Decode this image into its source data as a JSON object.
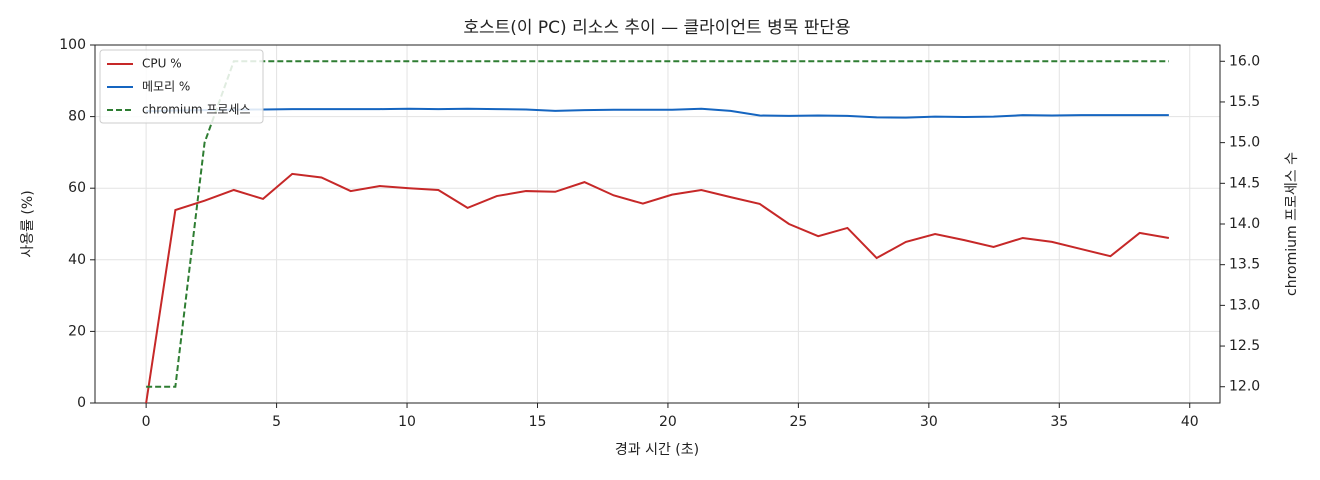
{
  "chart_data": {
    "type": "line",
    "title": "호스트(이 PC) 리소스 추이 — 클라이언트 병목 판단용",
    "x_label": "경과 시간 (초)",
    "y_label": "사용률 (%)",
    "y2_label": "chromium 프로세스 수",
    "x": [
      0,
      1.12,
      2.24,
      3.36,
      4.48,
      5.6,
      6.72,
      7.84,
      8.96,
      10.08,
      11.2,
      12.32,
      13.44,
      14.56,
      15.68,
      16.8,
      17.92,
      19.04,
      20.16,
      21.28,
      22.4,
      23.52,
      24.64,
      25.76,
      26.88,
      28,
      29.12,
      30.24,
      31.36,
      32.48,
      33.6,
      34.72,
      35.84,
      36.96,
      38.08,
      39.2
    ],
    "series": [
      {
        "name": "CPU %",
        "color": "#c62828",
        "dash": false,
        "values": [
          0,
          53.9,
          56.5,
          59.5,
          57,
          64,
          63,
          59.2,
          60.6,
          60,
          59.5,
          54.5,
          57.8,
          59.2,
          59,
          61.7,
          58,
          55.7,
          58.2,
          59.5,
          57.5,
          55.6,
          50,
          46.6,
          48.9,
          40.5,
          45,
          47.2,
          45.5,
          43.6,
          46.1,
          45,
          43,
          41,
          47.5,
          46.1
        ]
      },
      {
        "name": "메모리 %",
        "color": "#1565c0",
        "dash": false,
        "values": [
          81.5,
          81.7,
          81.8,
          81.9,
          82,
          82.1,
          82.1,
          82.1,
          82.1,
          82.2,
          82.1,
          82.2,
          82.1,
          82,
          81.6,
          81.8,
          81.9,
          81.9,
          81.9,
          82.2,
          81.6,
          80.3,
          80.2,
          80.3,
          80.2,
          79.8,
          79.7,
          80,
          79.9,
          80,
          80.4,
          80.3,
          80.4,
          80.4,
          80.4,
          80.4
        ]
      },
      {
        "name": "chromium 프로세스",
        "color": "#2e7d32",
        "dash": true,
        "axis": "y2",
        "values": [
          12,
          12,
          15,
          16,
          16,
          16,
          16,
          16,
          16,
          16,
          16,
          16,
          16,
          16,
          16,
          16,
          16,
          16,
          16,
          16,
          16,
          16,
          16,
          16,
          16,
          16,
          16,
          16,
          16,
          16,
          16,
          16,
          16,
          16,
          16,
          16
        ]
      }
    ],
    "xlim": [
      -1.96,
      41.16
    ],
    "xticks": [
      0,
      5,
      10,
      15,
      20,
      25,
      30,
      35,
      40
    ],
    "ylim": [
      0,
      100
    ],
    "yticks": [
      0,
      20,
      40,
      60,
      80,
      100
    ],
    "y2lim": [
      11.8,
      16.2
    ],
    "y2ticks": [
      {
        "value": 12,
        "label": "12.0"
      },
      12.5,
      {
        "value": 13,
        "label": "13.0"
      },
      13.5,
      {
        "value": 14,
        "label": "14.0"
      },
      14.5,
      {
        "value": 15,
        "label": "15.0"
      },
      15.5,
      {
        "value": 16,
        "label": "16.0"
      }
    ],
    "grid": true,
    "legend": "upper left"
  }
}
